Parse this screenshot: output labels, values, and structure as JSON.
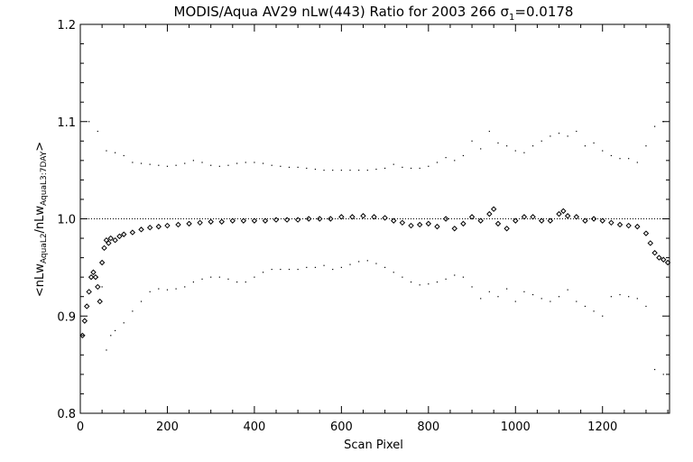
{
  "chart_data": {
    "type": "scatter",
    "title": "MODIS/Aqua AV29 nLw(443) Ratio for 2003 266 σ",
    "title_sub": "1",
    "title_tail": "=0.0178",
    "xlabel": "Scan Pixel",
    "ylabel": {
      "prefix": "<nLw",
      "sub1": "AquaL2",
      "mid": "/nLw",
      "sub2": "AquaL3:7DAY",
      "suffix": ">"
    },
    "xlim": [
      0,
      1354
    ],
    "ylim": [
      0.8,
      1.2
    ],
    "xticks": [
      0,
      200,
      400,
      600,
      800,
      1000,
      1200
    ],
    "yticks": [
      0.8,
      0.9,
      1.0,
      1.1,
      1.2
    ],
    "ytick_labels": [
      "0.8",
      "0.9",
      "1.0",
      "1.1",
      "1.2"
    ],
    "reference_line": 1.0,
    "grid": false,
    "series": [
      {
        "role": "mean",
        "marker": "diamond",
        "x": [
          5,
          10,
          15,
          20,
          25,
          30,
          35,
          40,
          45,
          50,
          55,
          60,
          65,
          70,
          80,
          90,
          100,
          120,
          140,
          160,
          180,
          200,
          225,
          250,
          275,
          300,
          325,
          350,
          375,
          400,
          425,
          450,
          475,
          500,
          525,
          550,
          575,
          600,
          625,
          650,
          675,
          700,
          720,
          740,
          760,
          780,
          800,
          820,
          840,
          860,
          880,
          900,
          920,
          940,
          950,
          960,
          980,
          1000,
          1020,
          1040,
          1060,
          1080,
          1100,
          1110,
          1120,
          1140,
          1160,
          1180,
          1200,
          1220,
          1240,
          1260,
          1280,
          1300,
          1310,
          1320,
          1330,
          1340,
          1350
        ],
        "y": [
          0.88,
          0.895,
          0.91,
          0.925,
          0.94,
          0.945,
          0.94,
          0.93,
          0.915,
          0.955,
          0.97,
          0.978,
          0.975,
          0.98,
          0.978,
          0.982,
          0.984,
          0.986,
          0.989,
          0.991,
          0.992,
          0.993,
          0.994,
          0.995,
          0.996,
          0.997,
          0.997,
          0.998,
          0.998,
          0.998,
          0.998,
          0.999,
          0.999,
          0.999,
          1.0,
          1.0,
          1.0,
          1.002,
          1.002,
          1.003,
          1.002,
          1.001,
          0.998,
          0.996,
          0.993,
          0.994,
          0.995,
          0.992,
          1.0,
          0.99,
          0.995,
          1.002,
          0.998,
          1.005,
          1.01,
          0.995,
          0.99,
          0.998,
          1.002,
          1.002,
          0.998,
          0.998,
          1.005,
          1.008,
          1.003,
          1.002,
          0.998,
          1.0,
          0.998,
          0.996,
          0.994,
          0.993,
          0.992,
          0.985,
          0.975,
          0.965,
          0.96,
          0.958,
          0.955
        ]
      },
      {
        "role": "upper",
        "marker": "dot",
        "x": [
          20,
          40,
          60,
          80,
          100,
          120,
          140,
          160,
          180,
          200,
          220,
          240,
          260,
          280,
          300,
          320,
          340,
          360,
          380,
          400,
          420,
          440,
          460,
          480,
          500,
          520,
          540,
          560,
          580,
          600,
          620,
          640,
          660,
          680,
          700,
          720,
          740,
          760,
          780,
          800,
          820,
          840,
          860,
          880,
          900,
          920,
          940,
          960,
          980,
          1000,
          1020,
          1040,
          1060,
          1080,
          1100,
          1120,
          1140,
          1160,
          1180,
          1200,
          1220,
          1240,
          1260,
          1280,
          1300,
          1320,
          1340
        ],
        "y": [
          1.1,
          1.09,
          1.07,
          1.068,
          1.065,
          1.058,
          1.057,
          1.056,
          1.055,
          1.054,
          1.055,
          1.057,
          1.06,
          1.058,
          1.055,
          1.054,
          1.055,
          1.057,
          1.058,
          1.058,
          1.057,
          1.055,
          1.054,
          1.053,
          1.053,
          1.052,
          1.051,
          1.05,
          1.05,
          1.05,
          1.05,
          1.05,
          1.05,
          1.051,
          1.052,
          1.056,
          1.053,
          1.052,
          1.052,
          1.054,
          1.058,
          1.063,
          1.06,
          1.065,
          1.08,
          1.072,
          1.09,
          1.078,
          1.075,
          1.07,
          1.068,
          1.075,
          1.08,
          1.085,
          1.088,
          1.085,
          1.09,
          1.075,
          1.078,
          1.07,
          1.065,
          1.062,
          1.062,
          1.058,
          1.075,
          1.095,
          1.1
        ]
      },
      {
        "role": "lower",
        "marker": "dot",
        "x": [
          40,
          50,
          60,
          70,
          80,
          100,
          120,
          140,
          160,
          180,
          200,
          220,
          240,
          260,
          280,
          300,
          320,
          340,
          360,
          380,
          400,
          420,
          440,
          460,
          480,
          500,
          520,
          540,
          560,
          580,
          600,
          620,
          640,
          660,
          680,
          700,
          720,
          740,
          760,
          780,
          800,
          820,
          840,
          860,
          880,
          900,
          920,
          940,
          960,
          980,
          1000,
          1020,
          1040,
          1060,
          1080,
          1100,
          1120,
          1140,
          1160,
          1180,
          1200,
          1220,
          1240,
          1260,
          1280,
          1300,
          1320,
          1340
        ],
        "y": [
          0.94,
          0.93,
          0.865,
          0.88,
          0.885,
          0.893,
          0.905,
          0.915,
          0.925,
          0.928,
          0.927,
          0.928,
          0.93,
          0.935,
          0.938,
          0.94,
          0.94,
          0.938,
          0.935,
          0.935,
          0.94,
          0.945,
          0.948,
          0.948,
          0.948,
          0.948,
          0.95,
          0.95,
          0.952,
          0.948,
          0.95,
          0.953,
          0.956,
          0.957,
          0.954,
          0.95,
          0.945,
          0.94,
          0.935,
          0.932,
          0.933,
          0.935,
          0.938,
          0.942,
          0.94,
          0.93,
          0.918,
          0.925,
          0.92,
          0.928,
          0.915,
          0.925,
          0.922,
          0.918,
          0.915,
          0.92,
          0.927,
          0.915,
          0.91,
          0.905,
          0.9,
          0.92,
          0.922,
          0.92,
          0.918,
          0.91,
          0.845,
          0.84
        ]
      }
    ]
  }
}
